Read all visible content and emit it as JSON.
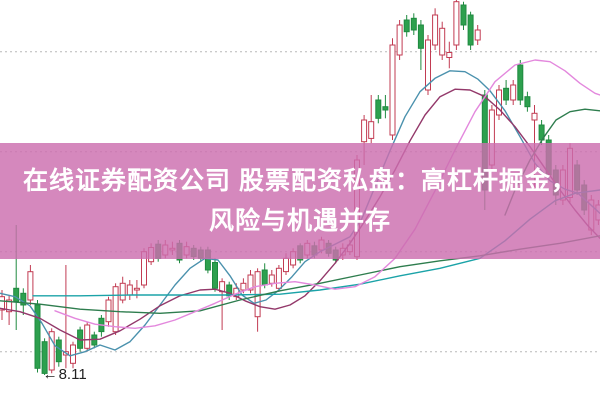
{
  "banner": {
    "line1": "在线证券配资公司 股票配资私盘：高杠杆掘金，",
    "line2": "风险与机遇并存",
    "bg_color": "rgba(204,110,175,0.82)",
    "text_color": "#ffffff"
  },
  "low_marker": {
    "arrow": "←",
    "label": "8.11",
    "candle_index": 6,
    "price": 8.11,
    "color": "#222222"
  },
  "colors": {
    "background": "#ffffff",
    "grid": "#b8b8b8",
    "candle_up_stroke": "#c23b52",
    "candle_up_fill": "#ffffff",
    "candle_down_fill": "#2da04e",
    "candle_down_stroke": "#1f8a40"
  },
  "chart_data": {
    "type": "candlestick",
    "title": "",
    "xlabel": "",
    "ylabel": "",
    "grid": "dotted-horizontal",
    "ylim": [
      7.81,
      12.61
    ],
    "gridline_prices": [
      11.99,
      10.79,
      9.59,
      8.39
    ],
    "low_annotation": "8.11",
    "x0": 2,
    "dx": 7.1,
    "candle_width": 5,
    "candles": [
      [
        8.89,
        9.13,
        8.77,
        9.05
      ],
      [
        8.87,
        9.07,
        8.71,
        9.01
      ],
      [
        9.15,
        9.91,
        8.65,
        8.99
      ],
      [
        9.09,
        9.15,
        8.83,
        8.95
      ],
      [
        9.01,
        9.43,
        8.95,
        9.35
      ],
      [
        8.95,
        9.01,
        8.14,
        8.19
      ],
      [
        8.51,
        8.55,
        8.11,
        8.13
      ],
      [
        8.17,
        8.67,
        8.13,
        8.63
      ],
      [
        8.53,
        8.57,
        8.21,
        8.27
      ],
      [
        8.35,
        9.43,
        8.19,
        8.39
      ],
      [
        8.25,
        8.51,
        8.19,
        8.47
      ],
      [
        8.65,
        8.69,
        8.39,
        8.43
      ],
      [
        8.43,
        8.75,
        8.39,
        8.71
      ],
      [
        8.59,
        8.63,
        8.43,
        8.47
      ],
      [
        8.79,
        8.83,
        8.57,
        8.63
      ],
      [
        8.75,
        9.05,
        8.69,
        9.01
      ],
      [
        8.63,
        9.21,
        8.59,
        9.17
      ],
      [
        9.01,
        9.29,
        8.97,
        9.21
      ],
      [
        9.07,
        9.25,
        9.01,
        9.19
      ],
      [
        9.13,
        9.25,
        9.03,
        9.15
      ],
      [
        9.19,
        9.63,
        9.15,
        9.59
      ],
      [
        9.47,
        9.69,
        9.43,
        9.64
      ],
      [
        9.68,
        9.73,
        9.47,
        9.51
      ],
      [
        9.55,
        9.73,
        9.51,
        9.67
      ],
      [
        9.61,
        9.71,
        9.55,
        9.63
      ],
      [
        9.69,
        9.73,
        9.45,
        9.49
      ],
      [
        9.55,
        9.71,
        9.51,
        9.65
      ],
      [
        9.63,
        9.67,
        9.49,
        9.53
      ],
      [
        9.61,
        9.65,
        9.47,
        9.51
      ],
      [
        9.61,
        9.65,
        9.33,
        9.37
      ],
      [
        9.46,
        9.51,
        9.11,
        9.15
      ],
      [
        9.11,
        9.27,
        8.65,
        9.23
      ],
      [
        9.19,
        9.23,
        9.01,
        9.06
      ],
      [
        9.05,
        9.21,
        9.01,
        9.15
      ],
      [
        9.13,
        9.27,
        9.09,
        9.21
      ],
      [
        9.13,
        9.37,
        9.09,
        9.31
      ],
      [
        8.81,
        9.39,
        8.63,
        9.35
      ],
      [
        9.37,
        9.45,
        9.15,
        9.19
      ],
      [
        9.21,
        9.37,
        9.17,
        9.31
      ],
      [
        9.15,
        9.43,
        9.11,
        9.39
      ],
      [
        9.35,
        9.57,
        9.31,
        9.51
      ],
      [
        9.43,
        9.63,
        9.39,
        9.59
      ],
      [
        9.66,
        9.69,
        9.45,
        9.49
      ],
      [
        9.55,
        9.73,
        9.51,
        9.69
      ],
      [
        9.66,
        9.71,
        9.51,
        9.55
      ],
      [
        9.61,
        9.77,
        9.57,
        9.73
      ],
      [
        9.69,
        9.73,
        9.53,
        9.57
      ],
      [
        9.61,
        9.65,
        9.45,
        9.49
      ],
      [
        9.55,
        9.69,
        9.49,
        9.63
      ],
      [
        9.59,
        9.73,
        9.55,
        9.67
      ],
      [
        9.53,
        10.75,
        9.49,
        10.69
      ],
      [
        10.91,
        11.23,
        10.63,
        11.17
      ],
      [
        10.95,
        11.47,
        10.89,
        11.15
      ],
      [
        11.41,
        11.47,
        11.13,
        11.19
      ],
      [
        11.33,
        11.47,
        11.19,
        11.29
      ],
      [
        10.99,
        12.15,
        10.93,
        12.07
      ],
      [
        11.95,
        12.37,
        11.89,
        12.31
      ],
      [
        12.37,
        12.43,
        12.17,
        12.23
      ],
      [
        12.39,
        12.45,
        12.19,
        12.25
      ],
      [
        12.31,
        12.37,
        11.77,
        12.03
      ],
      [
        11.53,
        12.19,
        11.47,
        12.13
      ],
      [
        12.07,
        12.51,
        12.01,
        12.43
      ],
      [
        11.95,
        12.35,
        11.89,
        12.27
      ],
      [
        11.92,
        12.11,
        11.79,
        11.98
      ],
      [
        12.07,
        12.61,
        12.01,
        12.59
      ],
      [
        12.55,
        12.59,
        12.25,
        12.31
      ],
      [
        12.43,
        12.47,
        12.01,
        12.07
      ],
      [
        12.13,
        12.31,
        12.07,
        12.25
      ],
      [
        11.47,
        11.53,
        10.09,
        10.33
      ],
      [
        10.63,
        11.35,
        10.57,
        11.29
      ],
      [
        11.23,
        11.59,
        11.17,
        11.53
      ],
      [
        11.55,
        11.65,
        11.35,
        11.41
      ],
      [
        11.41,
        11.65,
        11.35,
        11.59
      ],
      [
        11.83,
        11.89,
        11.35,
        11.41
      ],
      [
        11.45,
        11.51,
        11.27,
        11.33
      ],
      [
        11.17,
        11.35,
        10.33,
        11.25
      ],
      [
        11.11,
        11.17,
        10.87,
        10.93
      ],
      [
        10.93,
        10.99,
        10.45,
        10.51
      ],
      [
        10.57,
        10.63,
        10.15,
        10.27
      ],
      [
        10.21,
        10.63,
        10.15,
        10.57
      ],
      [
        10.24,
        10.89,
        10.18,
        10.83
      ],
      [
        10.63,
        10.69,
        10.27,
        10.33
      ],
      [
        10.39,
        10.45,
        10.03,
        10.09
      ],
      [
        9.85,
        10.27,
        9.79,
        10.21
      ],
      [
        9.97,
        10.21,
        9.91,
        10.15
      ]
    ],
    "lines": [
      {
        "name": "ma-fast-blue",
        "color": "#4a91ad",
        "points": [
          [
            0,
            9.09
          ],
          [
            15,
            9.05
          ],
          [
            30,
            8.94
          ],
          [
            42,
            8.73
          ],
          [
            55,
            8.46
          ],
          [
            70,
            8.34
          ],
          [
            85,
            8.39
          ],
          [
            100,
            8.47
          ],
          [
            115,
            8.41
          ],
          [
            130,
            8.51
          ],
          [
            145,
            8.71
          ],
          [
            160,
            8.95
          ],
          [
            175,
            9.19
          ],
          [
            190,
            9.39
          ],
          [
            205,
            9.51
          ],
          [
            218,
            9.49
          ],
          [
            230,
            9.3
          ],
          [
            242,
            9.07
          ],
          [
            254,
            8.97
          ],
          [
            266,
            9.01
          ],
          [
            278,
            9.12
          ],
          [
            292,
            9.29
          ],
          [
            305,
            9.47
          ],
          [
            320,
            9.59
          ],
          [
            335,
            9.68
          ],
          [
            350,
            9.77
          ],
          [
            362,
            9.99
          ],
          [
            375,
            10.37
          ],
          [
            390,
            10.8
          ],
          [
            405,
            11.21
          ],
          [
            420,
            11.51
          ],
          [
            435,
            11.67
          ],
          [
            450,
            11.76
          ],
          [
            465,
            11.75
          ],
          [
            478,
            11.66
          ],
          [
            490,
            11.52
          ],
          [
            505,
            11.28
          ],
          [
            520,
            10.97
          ],
          [
            535,
            10.65
          ],
          [
            550,
            10.44
          ],
          [
            565,
            10.34
          ],
          [
            578,
            10.29
          ],
          [
            590,
            10.16
          ],
          [
            600,
            10.05
          ]
        ]
      },
      {
        "name": "ma-mid-magenta",
        "color": "#93386a",
        "points": [
          [
            0,
            8.91
          ],
          [
            20,
            8.87
          ],
          [
            40,
            8.79
          ],
          [
            60,
            8.65
          ],
          [
            80,
            8.53
          ],
          [
            100,
            8.54
          ],
          [
            120,
            8.64
          ],
          [
            140,
            8.78
          ],
          [
            160,
            8.94
          ],
          [
            180,
            9.06
          ],
          [
            200,
            9.13
          ],
          [
            215,
            9.14
          ],
          [
            230,
            9.09
          ],
          [
            245,
            9.0
          ],
          [
            260,
            8.93
          ],
          [
            275,
            8.9
          ],
          [
            290,
            8.95
          ],
          [
            305,
            9.06
          ],
          [
            320,
            9.24
          ],
          [
            335,
            9.45
          ],
          [
            350,
            9.69
          ],
          [
            365,
            9.96
          ],
          [
            380,
            10.25
          ],
          [
            395,
            10.57
          ],
          [
            410,
            10.92
          ],
          [
            425,
            11.23
          ],
          [
            440,
            11.45
          ],
          [
            455,
            11.54
          ],
          [
            470,
            11.53
          ],
          [
            485,
            11.45
          ],
          [
            500,
            11.29
          ],
          [
            515,
            11.09
          ],
          [
            530,
            10.85
          ],
          [
            545,
            10.59
          ],
          [
            560,
            10.33
          ],
          [
            575,
            10.09
          ],
          [
            588,
            9.9
          ],
          [
            600,
            9.75
          ]
        ]
      },
      {
        "name": "ma-slow-teal",
        "color": "#1ba3a8",
        "points": [
          [
            33,
            9.06
          ],
          [
            80,
            9.06
          ],
          [
            130,
            9.07
          ],
          [
            180,
            9.07
          ],
          [
            230,
            9.07
          ],
          [
            280,
            9.08
          ],
          [
            320,
            9.13
          ],
          [
            360,
            9.2
          ],
          [
            400,
            9.3
          ],
          [
            440,
            9.39
          ],
          [
            480,
            9.51
          ],
          [
            505,
            9.72
          ],
          [
            530,
            9.98
          ],
          [
            555,
            10.2
          ],
          [
            575,
            10.29
          ],
          [
            600,
            10.33
          ]
        ]
      },
      {
        "name": "ma-slow-green",
        "color": "#2e7d4e",
        "points": [
          [
            0,
            9.0
          ],
          [
            40,
            8.96
          ],
          [
            80,
            8.9
          ],
          [
            120,
            8.87
          ],
          [
            160,
            8.85
          ],
          [
            200,
            8.88
          ],
          [
            240,
            9.01
          ],
          [
            280,
            9.12
          ],
          [
            320,
            9.21
          ],
          [
            360,
            9.31
          ],
          [
            400,
            9.41
          ],
          [
            440,
            9.48
          ],
          [
            480,
            9.54
          ],
          [
            520,
            9.62
          ],
          [
            560,
            9.69
          ],
          [
            600,
            9.78
          ]
        ]
      },
      {
        "name": "ma-orchid",
        "color": "#e388dd",
        "points": [
          [
            55,
            8.88
          ],
          [
            75,
            8.79
          ],
          [
            95,
            8.72
          ],
          [
            115,
            8.69
          ],
          [
            135,
            8.67
          ],
          [
            155,
            8.7
          ],
          [
            175,
            8.77
          ],
          [
            195,
            8.87
          ],
          [
            215,
            8.97
          ],
          [
            235,
            9.08
          ],
          [
            255,
            9.17
          ],
          [
            275,
            9.21
          ],
          [
            295,
            9.23
          ],
          [
            315,
            9.19
          ],
          [
            335,
            9.14
          ],
          [
            355,
            9.17
          ],
          [
            375,
            9.29
          ],
          [
            395,
            9.51
          ],
          [
            415,
            9.86
          ],
          [
            435,
            10.32
          ],
          [
            455,
            10.81
          ],
          [
            475,
            11.27
          ],
          [
            495,
            11.63
          ],
          [
            515,
            11.83
          ],
          [
            535,
            11.89
          ],
          [
            550,
            11.87
          ],
          [
            565,
            11.76
          ],
          [
            580,
            11.61
          ],
          [
            595,
            11.49
          ],
          [
            600,
            11.47
          ]
        ]
      },
      {
        "name": "ma-fast-green-right",
        "color": "#2e7d4e",
        "points": [
          [
            505,
            10.03
          ],
          [
            515,
            10.33
          ],
          [
            530,
            10.69
          ],
          [
            543,
            10.95
          ],
          [
            556,
            11.17
          ],
          [
            570,
            11.27
          ],
          [
            585,
            11.3
          ],
          [
            600,
            11.28
          ]
        ]
      }
    ]
  }
}
